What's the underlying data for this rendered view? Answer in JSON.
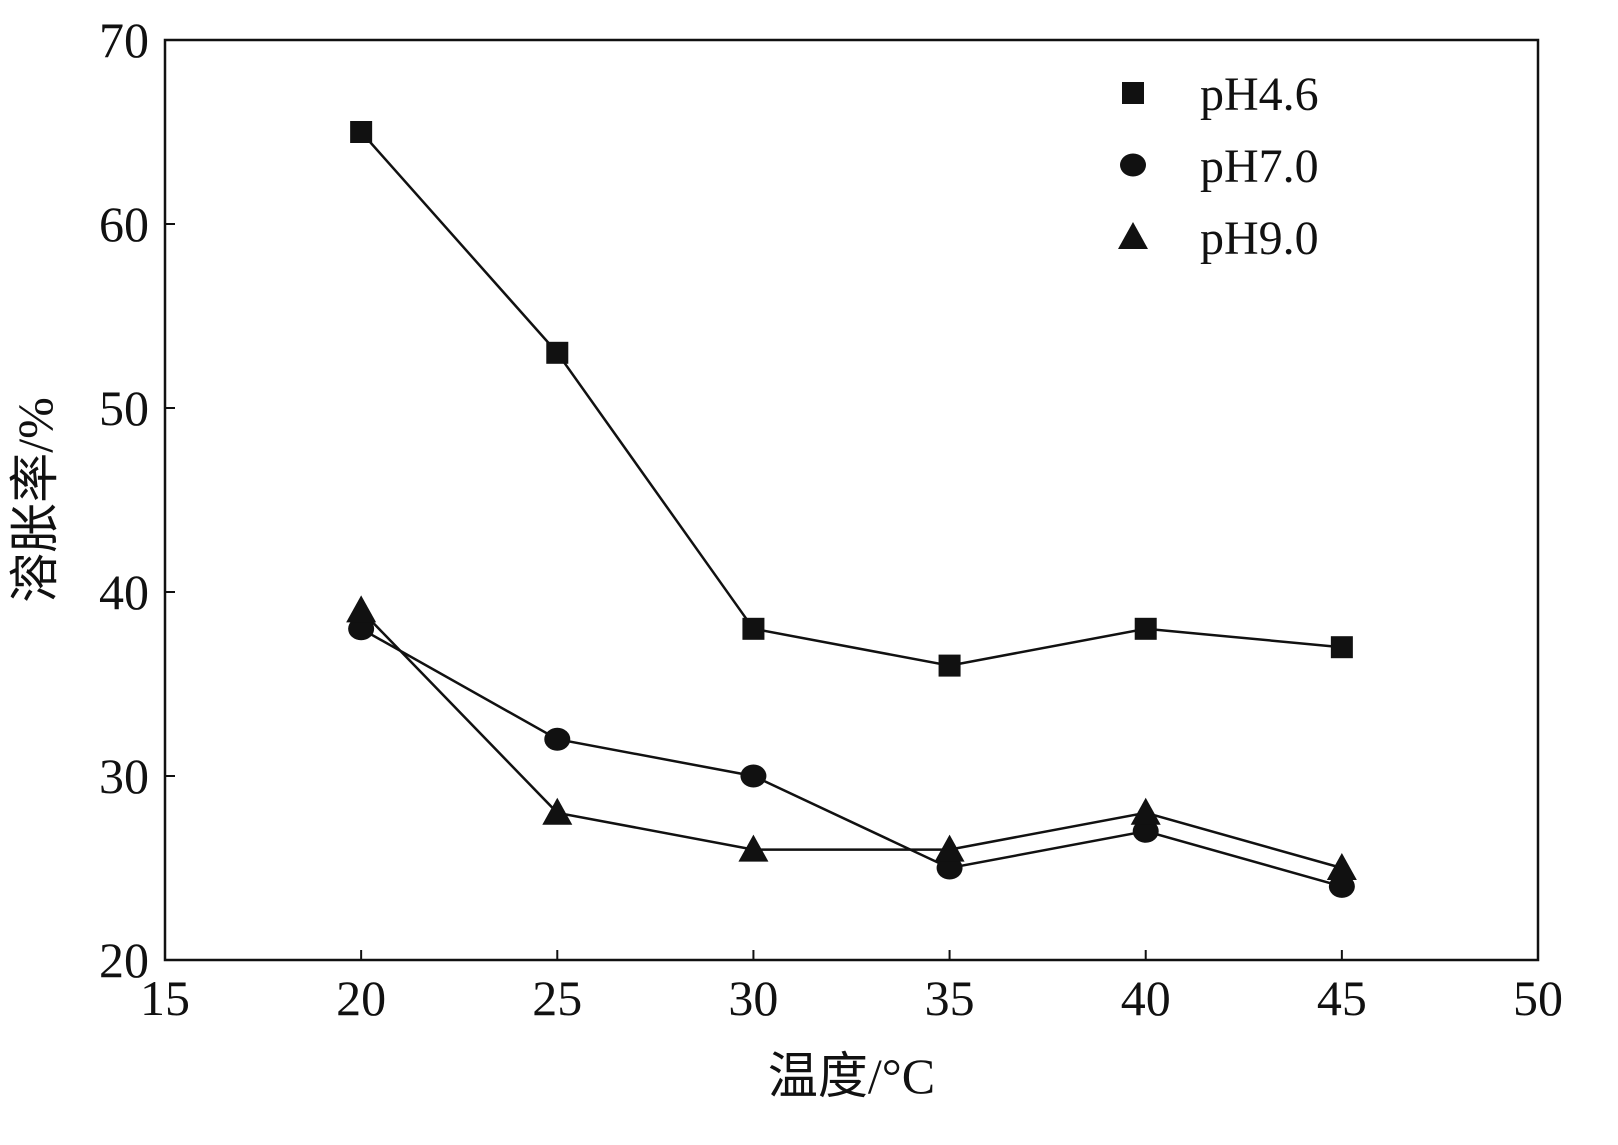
{
  "chart_data": {
    "type": "line",
    "xlabel": "温度/°C",
    "ylabel": "溶胀率/%",
    "xlim": [
      15,
      50
    ],
    "ylim": [
      20,
      70
    ],
    "xticks": [
      15,
      20,
      25,
      30,
      35,
      40,
      45,
      50
    ],
    "yticks": [
      20,
      30,
      40,
      50,
      60,
      70
    ],
    "grid": false,
    "legend_position": "top-right",
    "x": [
      20,
      25,
      30,
      35,
      40,
      45
    ],
    "series": [
      {
        "name": "pH4.6",
        "marker": "square",
        "values": [
          65,
          53,
          38,
          36,
          38,
          37
        ]
      },
      {
        "name": "pH7.0",
        "marker": "circle",
        "values": [
          38,
          32,
          30,
          25,
          27,
          24
        ]
      },
      {
        "name": "pH9.0",
        "marker": "triangle",
        "values": [
          39,
          28,
          26,
          26,
          28,
          25
        ]
      }
    ],
    "colors": {
      "line": "#111111",
      "marker": "#111111"
    }
  }
}
